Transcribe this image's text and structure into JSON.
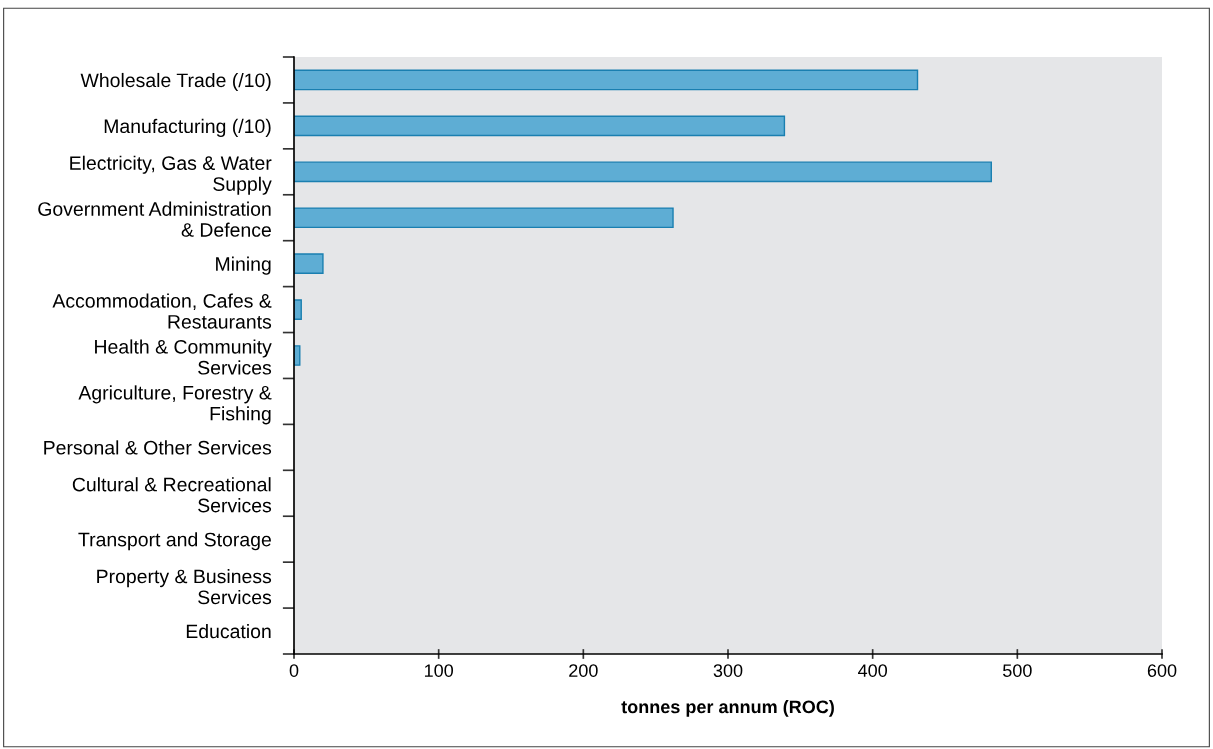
{
  "chart_data": {
    "type": "bar",
    "orientation": "horizontal",
    "xlabel": "tonnes per annum (ROC)",
    "categories": [
      "Wholesale Trade (/10)",
      "Manufacturing (/10)",
      "Electricity, Gas & Water\nSupply",
      "Government Administration\n& Defence",
      "Mining",
      "Accommodation, Cafes &\nRestaurants",
      "Health & Community\nServices",
      "Agriculture, Forestry &\nFishing",
      "Personal & Other Services",
      "Cultural & Recreational\nServices",
      "Transport and Storage",
      "Property & Business\nServices",
      "Education"
    ],
    "values": [
      431,
      339,
      482,
      262,
      20,
      5,
      4,
      0,
      0,
      0,
      0,
      0,
      0
    ],
    "color": "#5eadd4",
    "xlim": [
      0,
      600
    ],
    "xticks": [
      0,
      100,
      200,
      300,
      400,
      500,
      600
    ],
    "grid": false,
    "legend": false
  }
}
